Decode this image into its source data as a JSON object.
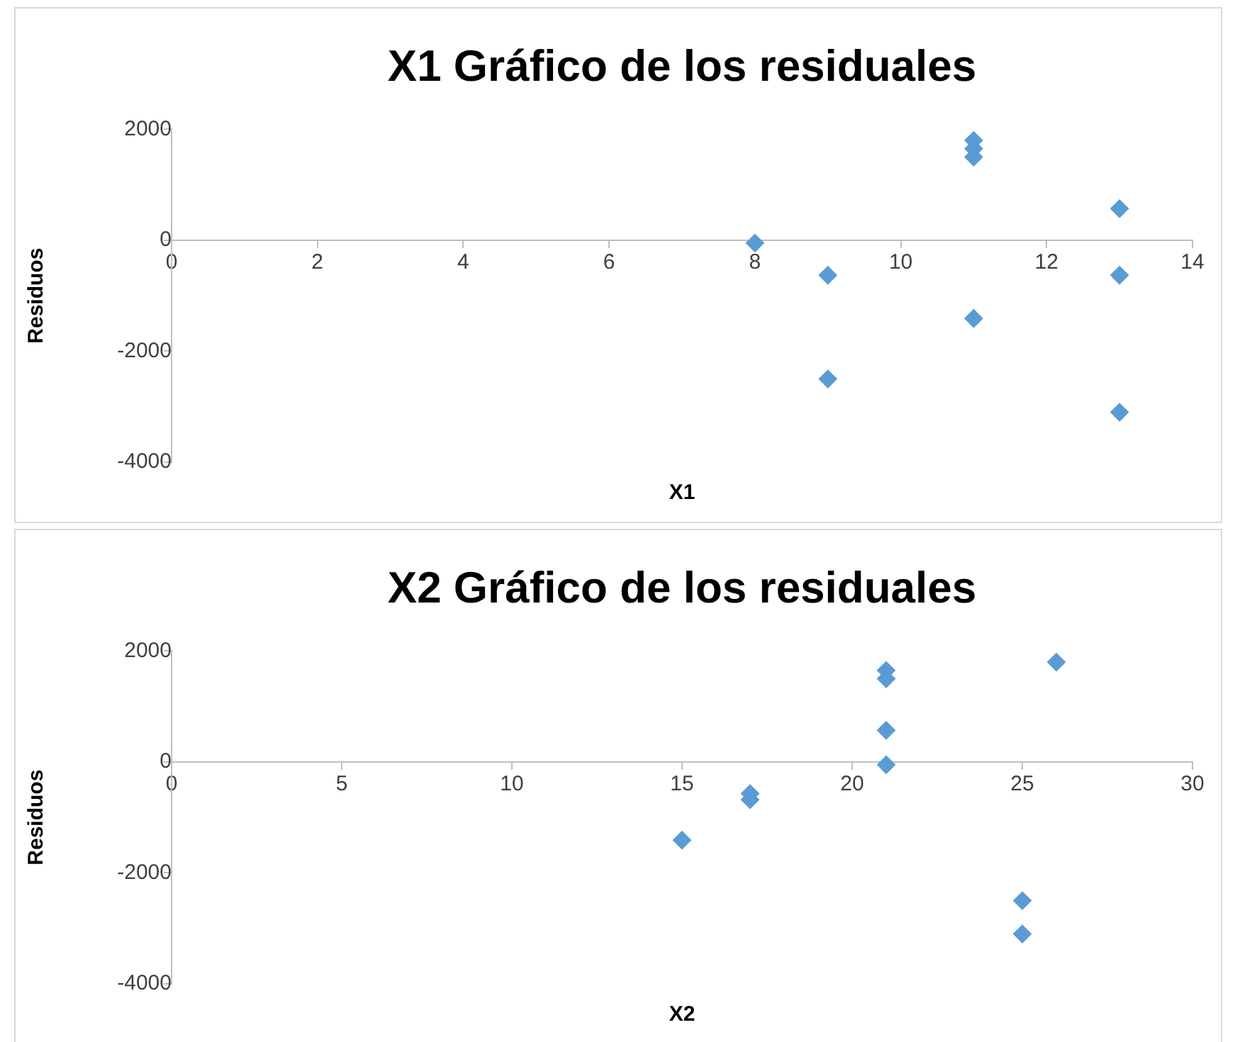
{
  "chart_data": [
    {
      "type": "scatter",
      "title": "X1 Gráfico de los residuales",
      "xlabel": "X1",
      "ylabel": "Residuos",
      "marker": "diamond",
      "color": "#5b9bd5",
      "x": [
        8,
        9,
        9,
        11,
        11,
        11,
        11,
        13,
        13,
        13
      ],
      "values": [
        -50,
        -630,
        -2500,
        1800,
        1650,
        1500,
        -1410,
        570,
        -630,
        -3100
      ],
      "xlim": [
        0,
        14
      ],
      "xticks": [
        0,
        2,
        4,
        6,
        8,
        10,
        12,
        14
      ],
      "ylim": [
        -4000,
        2000
      ],
      "yticks": [
        -4000,
        -2000,
        0,
        2000
      ]
    },
    {
      "type": "scatter",
      "title": "X2 Gráfico de los residuales",
      "xlabel": "X2",
      "ylabel": "Residuos",
      "marker": "diamond",
      "color": "#5b9bd5",
      "x": [
        15,
        17,
        17,
        21,
        21,
        21,
        21,
        25,
        25,
        26
      ],
      "values": [
        -1410,
        -570,
        -680,
        1650,
        1500,
        570,
        -50,
        -2500,
        -3100,
        1800
      ],
      "xlim": [
        0,
        30
      ],
      "xticks": [
        0,
        5,
        10,
        15,
        20,
        25,
        30
      ],
      "ylim": [
        -4000,
        2000
      ],
      "yticks": [
        -4000,
        -2000,
        0,
        2000
      ]
    }
  ]
}
